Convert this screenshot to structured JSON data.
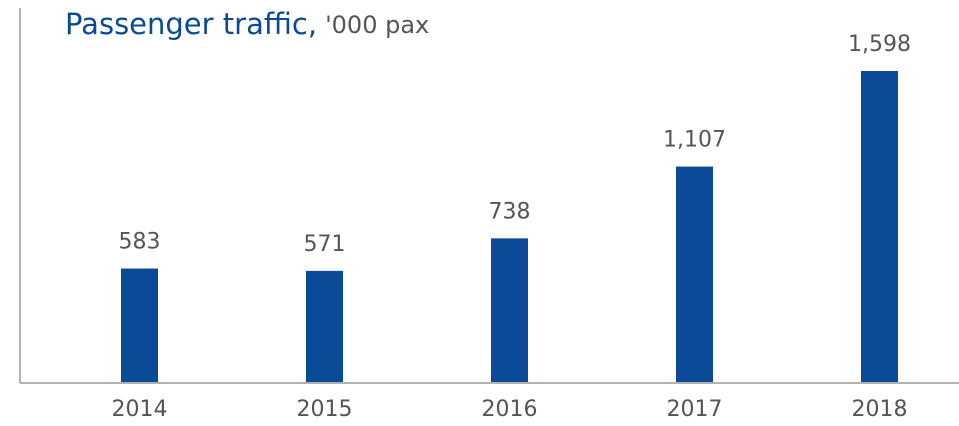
{
  "chart_data": {
    "type": "bar",
    "title": "Passenger traffic,",
    "subtitle": "'000 pax",
    "categories": [
      "2014",
      "2015",
      "2016",
      "2017",
      "2018"
    ],
    "values": [
      583,
      571,
      738,
      1107,
      1598
    ],
    "value_labels": [
      "583",
      "571",
      "738",
      "1,107",
      "1,598"
    ],
    "color": "#0a4a96"
  }
}
